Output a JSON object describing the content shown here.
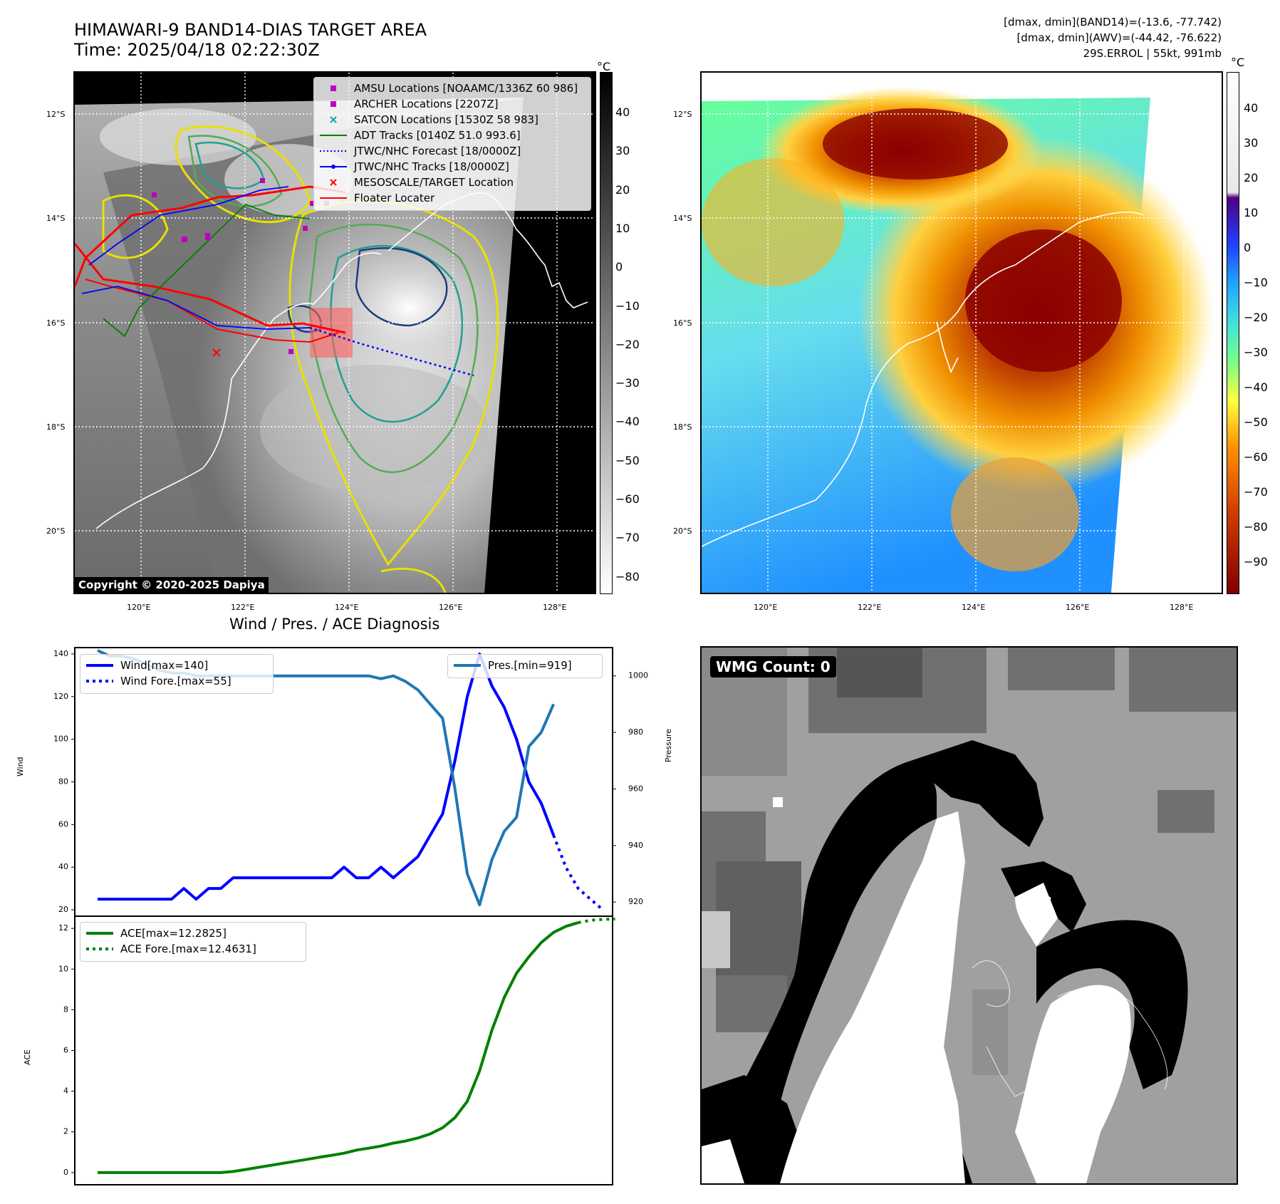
{
  "header": {
    "title_line1": "HIMAWARI-9 BAND14-DIAS TARGET AREA",
    "title_line2": "Time: 2025/04/18 02:22:30Z",
    "info_line1": "[dmax, dmin](BAND14)=(-13.6, -77.742)",
    "info_line2": "[dmax, dmin](AWV)=(-44.42, -76.622)",
    "info_line3": "29S.ERROL | 55kt, 991mb"
  },
  "maps": {
    "lat_ticks": [
      "12°S",
      "14°S",
      "16°S",
      "18°S",
      "20°S"
    ],
    "lon_ticks": [
      "120°E",
      "122°E",
      "124°E",
      "126°E",
      "128°E"
    ],
    "copyright": "Copyright © 2020-2025 Dapiya",
    "colorbar_unit": "°C",
    "left_colorbar_ticks": [
      "40",
      "30",
      "20",
      "10",
      "0",
      "−10",
      "−20",
      "−30",
      "−40",
      "−50",
      "−60",
      "−70",
      "−80"
    ],
    "right_colorbar_ticks": [
      "40",
      "30",
      "20",
      "10",
      "0",
      "−10",
      "−20",
      "−30",
      "−40",
      "−50",
      "−60",
      "−70",
      "−80",
      "−90"
    ],
    "legend": [
      {
        "label": "AMSU Locations [NOAAMC/1336Z 60 986]",
        "color": "#bf00bf",
        "marker": "square"
      },
      {
        "label": "ARCHER Locations [2207Z]",
        "color": "#bf00bf",
        "marker": "square"
      },
      {
        "label": "SATCON Locations [1530Z 58 983]",
        "color": "#00aaaa",
        "marker": "x"
      },
      {
        "label": "ADT Tracks [0140Z 51.0 993.6]",
        "color": "#008000",
        "marker": "line"
      },
      {
        "label": "JTWC/NHC Forecast [18/0000Z]",
        "color": "#0000ff",
        "marker": "dotted"
      },
      {
        "label": "JTWC/NHC Tracks [18/0000Z]",
        "color": "#0000ff",
        "marker": "line-dot"
      },
      {
        "label": "MESOSCALE/TARGET Location",
        "color": "#ff0000",
        "marker": "x"
      },
      {
        "label": "Floater Locater",
        "color": "#ff0000",
        "marker": "line"
      }
    ],
    "wmg_label": "WMG Count: 0"
  },
  "chart_data": [
    {
      "type": "line",
      "title": "Wind / Pres. / ACE Diagnosis",
      "xlabel": "",
      "ylabel": "Wind",
      "y2label": "Pressure",
      "ylim": [
        17,
        143
      ],
      "y2lim": [
        915,
        1010
      ],
      "yticks": [
        "20",
        "40",
        "60",
        "80",
        "100",
        "120",
        "140"
      ],
      "y2ticks": [
        "920",
        "940",
        "960",
        "980",
        "1000"
      ],
      "legend_left": [
        "Wind[max=140]",
        "Wind Fore.[max=55]"
      ],
      "legend_right": [
        "Pres.[min=919]"
      ],
      "series": [
        {
          "name": "Wind[max=140]",
          "color": "#0000ff",
          "style": "solid",
          "axis": "left",
          "values": [
            25,
            25,
            25,
            25,
            25,
            25,
            25,
            30,
            25,
            30,
            30,
            35,
            35,
            35,
            35,
            35,
            35,
            35,
            35,
            35,
            40,
            35,
            35,
            40,
            35,
            40,
            45,
            55,
            65,
            90,
            120,
            140,
            125,
            115,
            100,
            80,
            70,
            55
          ]
        },
        {
          "name": "Wind Fore.[max=55]",
          "color": "#0000ff",
          "style": "dotted",
          "axis": "left",
          "start_index": 37,
          "values": [
            55,
            40,
            30,
            25,
            20
          ]
        },
        {
          "name": "Pres.[min=919]",
          "color": "#1f77b4",
          "style": "solid",
          "axis": "right",
          "values": [
            1009,
            1007,
            1007,
            1006,
            1004,
            1002,
            1001,
            1001,
            1000,
            1000,
            1000,
            1000,
            1000,
            1000,
            1000,
            1000,
            1000,
            1000,
            1000,
            1000,
            1000,
            1000,
            1000,
            999,
            1000,
            998,
            995,
            990,
            985,
            960,
            930,
            919,
            935,
            945,
            950,
            975,
            980,
            990
          ]
        }
      ]
    },
    {
      "type": "line",
      "title": "",
      "xlabel": "",
      "ylabel": "ACE",
      "ylim": [
        -0.6,
        12.6
      ],
      "yticks": [
        "0",
        "2",
        "4",
        "6",
        "8",
        "10",
        "12"
      ],
      "legend": [
        "ACE[max=12.2825]",
        "ACE Fore.[max=12.4631]"
      ],
      "series": [
        {
          "name": "ACE[max=12.2825]",
          "color": "#008000",
          "style": "solid",
          "values": [
            0,
            0,
            0,
            0,
            0,
            0,
            0,
            0,
            0,
            0,
            0,
            0.05,
            0.15,
            0.25,
            0.35,
            0.45,
            0.55,
            0.65,
            0.75,
            0.85,
            0.95,
            1.1,
            1.2,
            1.3,
            1.45,
            1.55,
            1.7,
            1.9,
            2.2,
            2.7,
            3.5,
            5,
            7,
            8.6,
            9.8,
            10.6,
            11.3,
            11.8,
            12.1,
            12.28
          ]
        },
        {
          "name": "ACE Fore.[max=12.4631]",
          "color": "#008000",
          "style": "dotted",
          "start_index": 39,
          "values": [
            12.28,
            12.4,
            12.44,
            12.46
          ]
        }
      ]
    }
  ]
}
